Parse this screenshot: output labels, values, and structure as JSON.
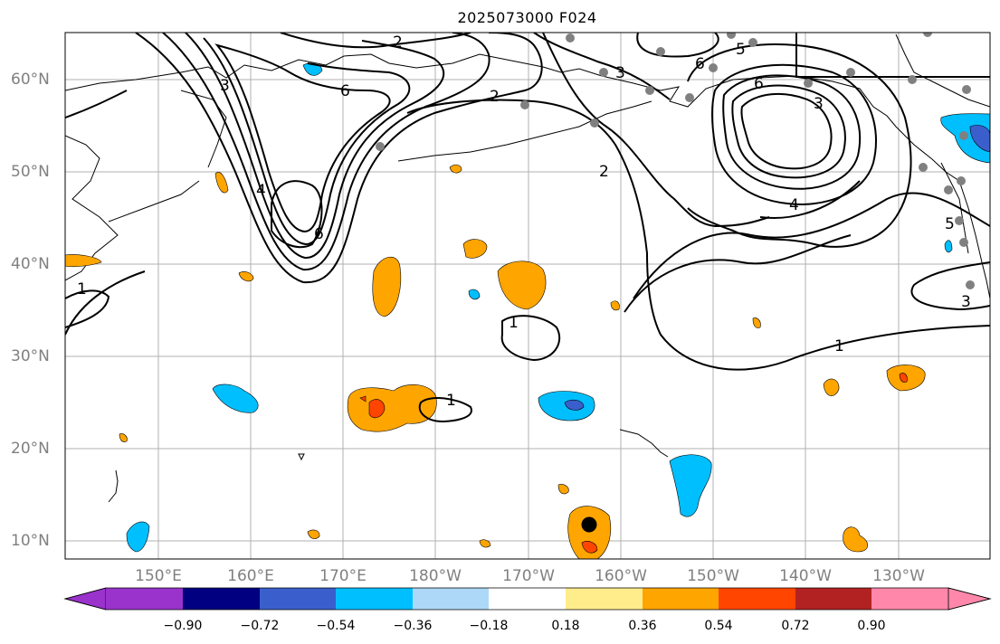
{
  "title": "2025073000 F024",
  "lat_labels": [
    "60°N",
    "50°N",
    "40°N",
    "30°N",
    "20°N",
    "10°N"
  ],
  "lon_labels": [
    "150°E",
    "160°E",
    "170°E",
    "180°W",
    "170°W",
    "160°W",
    "150°W",
    "140°W",
    "130°W"
  ],
  "colorbar": {
    "ticks": [
      "−0.90",
      "−0.72",
      "−0.54",
      "−0.36",
      "−0.18",
      "0.18",
      "0.36",
      "0.54",
      "0.72",
      "0.90"
    ],
    "colors": [
      "#9933cc",
      "#000080",
      "#3a5fcd",
      "#00bfff",
      "#add8f7",
      "#ffffff",
      "#ffec8b",
      "#ffa500",
      "#ff4500",
      "#b22222",
      "#ff88aa"
    ]
  },
  "contour_labels": [
    "2",
    "2",
    "2",
    "3",
    "3",
    "3",
    "4",
    "4",
    "5",
    "5",
    "6",
    "6",
    "6",
    "6",
    "1",
    "1",
    "1",
    "1",
    "3"
  ],
  "colors": {
    "warm": "#ffa500",
    "hot": "#ff4500",
    "cool": "#00bfff",
    "cold": "#3a5fcd",
    "grid": "#b0b0b0",
    "station": "#808080"
  }
}
